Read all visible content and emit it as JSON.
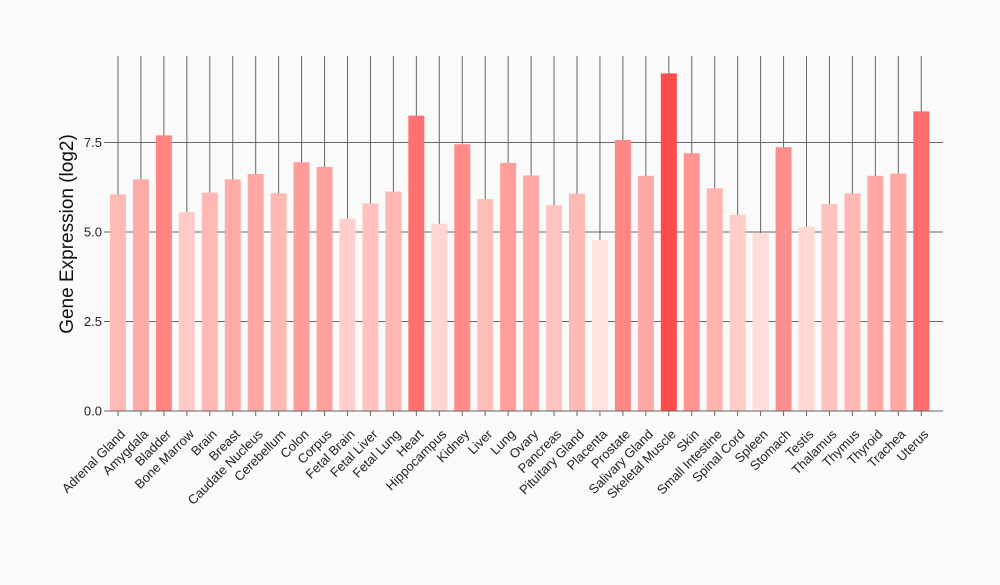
{
  "chart_data": {
    "type": "bar",
    "title": "",
    "xlabel": "",
    "ylabel": "Gene Expression (log2)",
    "ylim": [
      0,
      10
    ],
    "yticks": [
      "0.0",
      "2.5",
      "5.0",
      "7.5"
    ],
    "ytick_values": [
      0,
      2.5,
      5.0,
      7.5
    ],
    "grid": true,
    "legend": "none",
    "color_scale": {
      "low": "#ffe4de",
      "high": "#ff4b4b"
    },
    "categories": [
      "Adrenal Gland",
      "Amygdala",
      "Bladder",
      "Bone Marrow",
      "Brain",
      "Breast",
      "Caudate Nucleus",
      "Cerebellum",
      "Colon",
      "Corpus",
      "Fetal Brain",
      "Fetal Liver",
      "Fetal Lung",
      "Heart",
      "Hippocampus",
      "Kidney",
      "Liver",
      "Lung",
      "Ovary",
      "Pancreas",
      "Pituitary Gland",
      "Placenta",
      "Prostate",
      "Salivary Gland",
      "Skeletal Muscle",
      "Skin",
      "Small Intestine",
      "Spinal Cord",
      "Spleen",
      "Stomach",
      "Testis",
      "Thalamus",
      "Thymus",
      "Thyroid",
      "Trachea",
      "Uterus"
    ],
    "values": [
      6.05,
      6.47,
      7.7,
      5.55,
      6.1,
      6.47,
      6.62,
      6.08,
      6.95,
      6.82,
      5.37,
      5.8,
      6.13,
      8.25,
      5.23,
      7.45,
      5.92,
      6.93,
      6.58,
      5.75,
      6.07,
      4.77,
      7.57,
      6.57,
      9.43,
      7.2,
      6.22,
      5.48,
      4.97,
      7.37,
      5.15,
      5.78,
      6.08,
      6.57,
      6.63,
      8.37
    ]
  }
}
